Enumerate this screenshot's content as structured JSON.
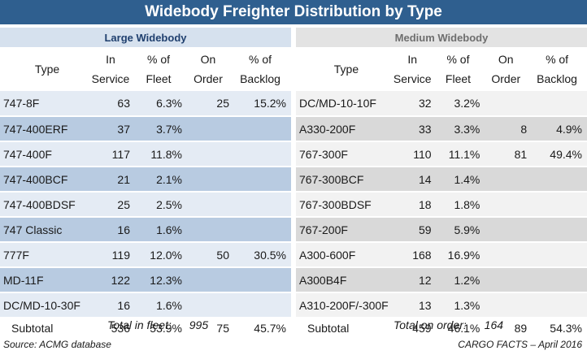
{
  "title": "Widebody Freighter Distribution by Type",
  "headers": {
    "type": "Type",
    "in_service": "In Service",
    "pct_fleet": "% of Fleet",
    "on_order": "On Order",
    "pct_backlog": "% of Backlog"
  },
  "large": {
    "heading": "Large Widebody",
    "rows": [
      {
        "type": "747-8F",
        "in_service": "63",
        "pct_fleet": "6.3%",
        "on_order": "25",
        "pct_backlog": "15.2%"
      },
      {
        "type": "747-400ERF",
        "in_service": "37",
        "pct_fleet": "3.7%",
        "on_order": "",
        "pct_backlog": ""
      },
      {
        "type": "747-400F",
        "in_service": "117",
        "pct_fleet": "11.8%",
        "on_order": "",
        "pct_backlog": ""
      },
      {
        "type": "747-400BCF",
        "in_service": "21",
        "pct_fleet": "2.1%",
        "on_order": "",
        "pct_backlog": ""
      },
      {
        "type": "747-400BDSF",
        "in_service": "25",
        "pct_fleet": "2.5%",
        "on_order": "",
        "pct_backlog": ""
      },
      {
        "type": "747 Classic",
        "in_service": "16",
        "pct_fleet": "1.6%",
        "on_order": "",
        "pct_backlog": ""
      },
      {
        "type": "777F",
        "in_service": "119",
        "pct_fleet": "12.0%",
        "on_order": "50",
        "pct_backlog": "30.5%"
      },
      {
        "type": "MD-11F",
        "in_service": "122",
        "pct_fleet": "12.3%",
        "on_order": "",
        "pct_backlog": ""
      },
      {
        "type": "DC/MD-10-30F",
        "in_service": "16",
        "pct_fleet": "1.6%",
        "on_order": "",
        "pct_backlog": ""
      }
    ],
    "subtotal": {
      "type": "Subtotal",
      "in_service": "536",
      "pct_fleet": "53.9%",
      "on_order": "75",
      "pct_backlog": "45.7%"
    },
    "total_label": "Total in fleet:",
    "total_value": "995"
  },
  "medium": {
    "heading": "Medium Widebody",
    "rows": [
      {
        "type": "DC/MD-10-10F",
        "in_service": "32",
        "pct_fleet": "3.2%",
        "on_order": "",
        "pct_backlog": ""
      },
      {
        "type": "A330-200F",
        "in_service": "33",
        "pct_fleet": "3.3%",
        "on_order": "8",
        "pct_backlog": "4.9%"
      },
      {
        "type": "767-300F",
        "in_service": "110",
        "pct_fleet": "11.1%",
        "on_order": "81",
        "pct_backlog": "49.4%"
      },
      {
        "type": "767-300BCF",
        "in_service": "14",
        "pct_fleet": "1.4%",
        "on_order": "",
        "pct_backlog": ""
      },
      {
        "type": "767-300BDSF",
        "in_service": "18",
        "pct_fleet": "1.8%",
        "on_order": "",
        "pct_backlog": ""
      },
      {
        "type": "767-200F",
        "in_service": "59",
        "pct_fleet": "5.9%",
        "on_order": "",
        "pct_backlog": ""
      },
      {
        "type": "A300-600F",
        "in_service": "168",
        "pct_fleet": "16.9%",
        "on_order": "",
        "pct_backlog": ""
      },
      {
        "type": "A300B4F",
        "in_service": "12",
        "pct_fleet": "1.2%",
        "on_order": "",
        "pct_backlog": ""
      },
      {
        "type": "A310-200F/-300F",
        "in_service": "13",
        "pct_fleet": "1.3%",
        "on_order": "",
        "pct_backlog": ""
      }
    ],
    "subtotal": {
      "type": "Subtotal",
      "in_service": "459",
      "pct_fleet": "46.1%",
      "on_order": "89",
      "pct_backlog": "54.3%"
    },
    "total_label": "Total on order:",
    "total_value": "164"
  },
  "source": "Source: ACMG database",
  "credit": "CARGO FACTS – April 2016",
  "colors": {
    "title_bar": "#2f5f8f",
    "large_band_light": "#e4ebf4",
    "large_band_dark": "#b8cbe1",
    "medium_band_light": "#f2f2f2",
    "medium_band_dark": "#d9d9d9"
  },
  "chart_data": {
    "type": "table",
    "title": "Widebody Freighter Distribution by Type",
    "columns": [
      "Type",
      "In Service",
      "% of Fleet",
      "On Order",
      "% of Backlog"
    ]
  }
}
